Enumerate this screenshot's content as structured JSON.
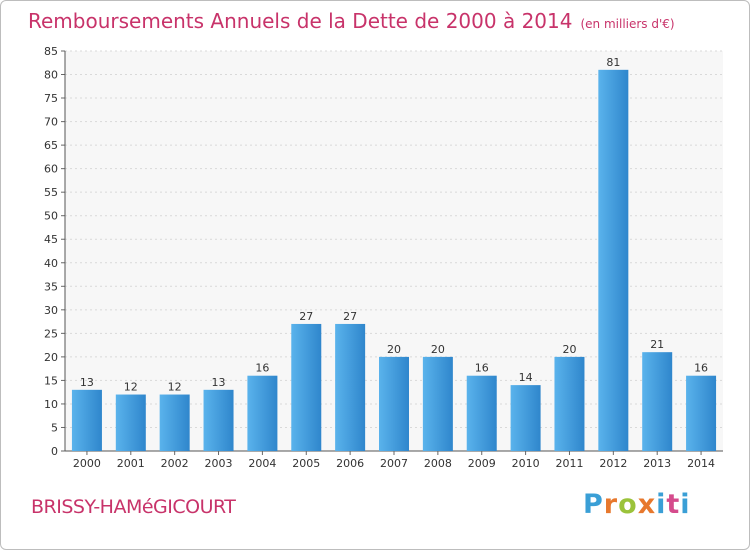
{
  "header": {
    "title": "Remboursements Annuels de la Dette de 2000 à 2014",
    "unit_note": "(en milliers d'€)"
  },
  "footer": {
    "town": "BRISSY-HAMéGICOURT",
    "logo_text": "Proxiti"
  },
  "colors": {
    "accent": "#c8336a",
    "bar": "#3f97d9"
  },
  "chart_data": {
    "type": "bar",
    "title": "Remboursements Annuels de la Dette de 2000 à 2014",
    "subtitle": "(en milliers d'€)",
    "categories": [
      "2000",
      "2001",
      "2002",
      "2003",
      "2004",
      "2005",
      "2006",
      "2007",
      "2008",
      "2009",
      "2010",
      "2011",
      "2012",
      "2013",
      "2014"
    ],
    "values": [
      13,
      12,
      12,
      13,
      16,
      27,
      27,
      20,
      20,
      16,
      14,
      20,
      81,
      21,
      16
    ],
    "ylim": [
      0,
      85
    ],
    "yticks": [
      0,
      5,
      10,
      15,
      20,
      25,
      30,
      35,
      40,
      45,
      50,
      55,
      60,
      65,
      70,
      75,
      80,
      85
    ],
    "grid": true
  }
}
